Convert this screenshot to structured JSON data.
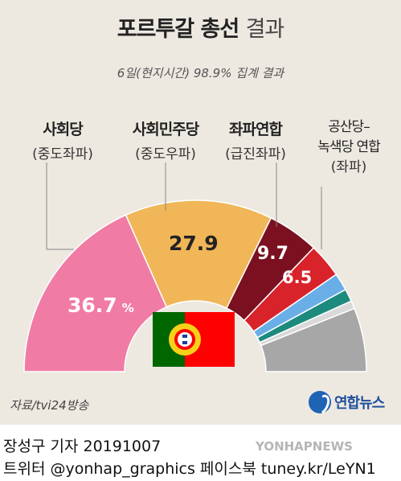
{
  "header": {
    "title_bold": "포르투갈 총선",
    "title_light": "결과",
    "subtitle": "6일(현지시간) 98.9% 집계 결과"
  },
  "chart_data": {
    "type": "pie",
    "style": "semicircle-donut",
    "title": "포르투갈 총선 결과",
    "subtitle": "6일(현지시간) 98.9% 집계 결과",
    "unit": "%",
    "segments": [
      {
        "name": "사회당",
        "tag": "(중도좌파)",
        "value": 36.7,
        "label": "36.7",
        "color": "#f07ca5"
      },
      {
        "name": "사회민주당",
        "tag": "(중도우파)",
        "value": 27.9,
        "label": "27.9",
        "color": "#f0b657"
      },
      {
        "name": "좌파연합",
        "tag": "(급진좌파)",
        "value": 9.7,
        "label": "9.7",
        "color": "#7a1020"
      },
      {
        "name": "공산당–녹색당 연합",
        "tag": "(좌파)",
        "value": 6.5,
        "label": "6.5",
        "color": "#d8232a"
      },
      {
        "name": "",
        "tag": "",
        "value": 3.3,
        "label": "",
        "color": "#6aaee8"
      },
      {
        "name": "",
        "tag": "",
        "value": 2.4,
        "label": "",
        "color": "#1d8a7e"
      },
      {
        "name": "",
        "tag": "",
        "value": 1.5,
        "label": "",
        "color": "#d9d9d9"
      },
      {
        "name": "",
        "tag": "",
        "value": 12.0,
        "label": "",
        "color": "#a7a7a7"
      }
    ]
  },
  "labels": {
    "ps_name": "사회당",
    "ps_tag": "(중도좌파)",
    "psd_name": "사회민주당",
    "psd_tag": "(중도우파)",
    "be_name": "좌파연합",
    "be_tag": "(급진좌파)",
    "cdu_name1": "공산당–",
    "cdu_name2": "녹색당 연합",
    "cdu_tag": "(좌파)",
    "percent_sign": "%"
  },
  "source": "자료/tvi24방송",
  "logo_text": "연합뉴스",
  "footer": {
    "line1": "장성구 기자  20191007",
    "line2": "트위터 @yonhap_graphics  페이스북 tuney.kr/LeYN1"
  },
  "watermark": "YONHAPNEWS",
  "colors": {
    "background": "#ede9e1",
    "flag_green": "#006600",
    "flag_red": "#ff0000"
  }
}
